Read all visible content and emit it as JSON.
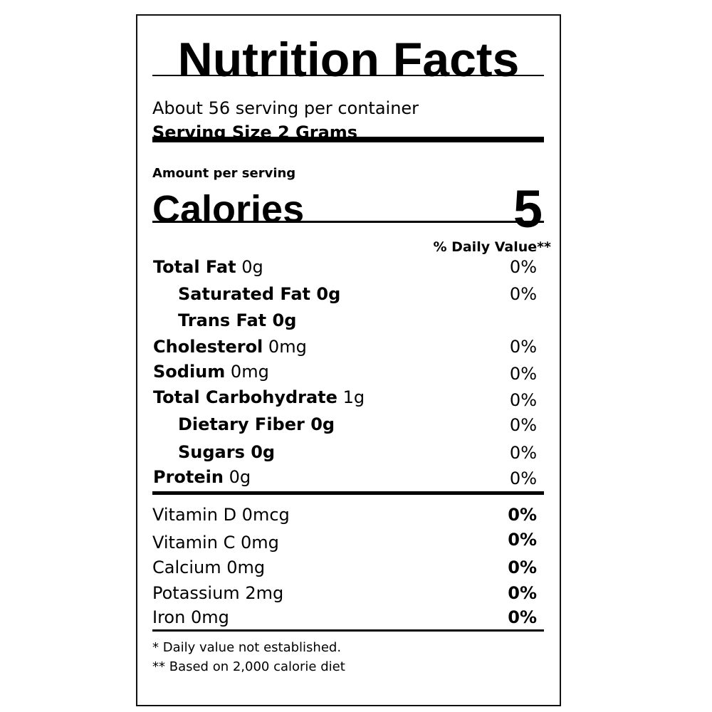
{
  "title": "Nutrition Facts",
  "servings_per_container": "About 56 serving per container",
  "serving_size": "Serving Size 2 Grams",
  "amount_per_serving": "Amount per serving",
  "calories": {
    "label": "Calories",
    "value": "5"
  },
  "daily_value_header": "% Daily Value**",
  "nutrients": [
    {
      "name": "Total Fat",
      "amount": "0g",
      "dv": "0%"
    },
    {
      "name": "Saturated Fat 0g",
      "amount": "",
      "dv": "0%"
    },
    {
      "name": "Trans Fat 0g",
      "amount": "",
      "dv": ""
    },
    {
      "name": "Cholesterol",
      "amount": "0mg",
      "dv": "0%"
    },
    {
      "name": "Sodium",
      "amount": "0mg",
      "dv": "0%"
    },
    {
      "name": "Total Carbohydrate",
      "amount": "1g",
      "dv": "0%"
    },
    {
      "name": "Dietary Fiber 0g",
      "amount": "",
      "dv": "0%"
    },
    {
      "name": "Sugars 0g",
      "amount": "",
      "dv": "0%"
    },
    {
      "name": "Protein",
      "amount": "0g",
      "dv": "0%"
    }
  ],
  "vitamins": [
    {
      "name": "Vitamin D 0mcg",
      "dv": "0%"
    },
    {
      "name": "Vitamin C 0mg",
      "dv": "0%"
    },
    {
      "name": "Calcium 0mg",
      "dv": "0%"
    },
    {
      "name": "Potassium 2mg",
      "dv": "0%"
    },
    {
      "name": "Iron 0mg",
      "dv": "0%"
    }
  ],
  "footnotes": [
    "* Daily value not established.",
    "** Based on 2,000 calorie diet"
  ]
}
